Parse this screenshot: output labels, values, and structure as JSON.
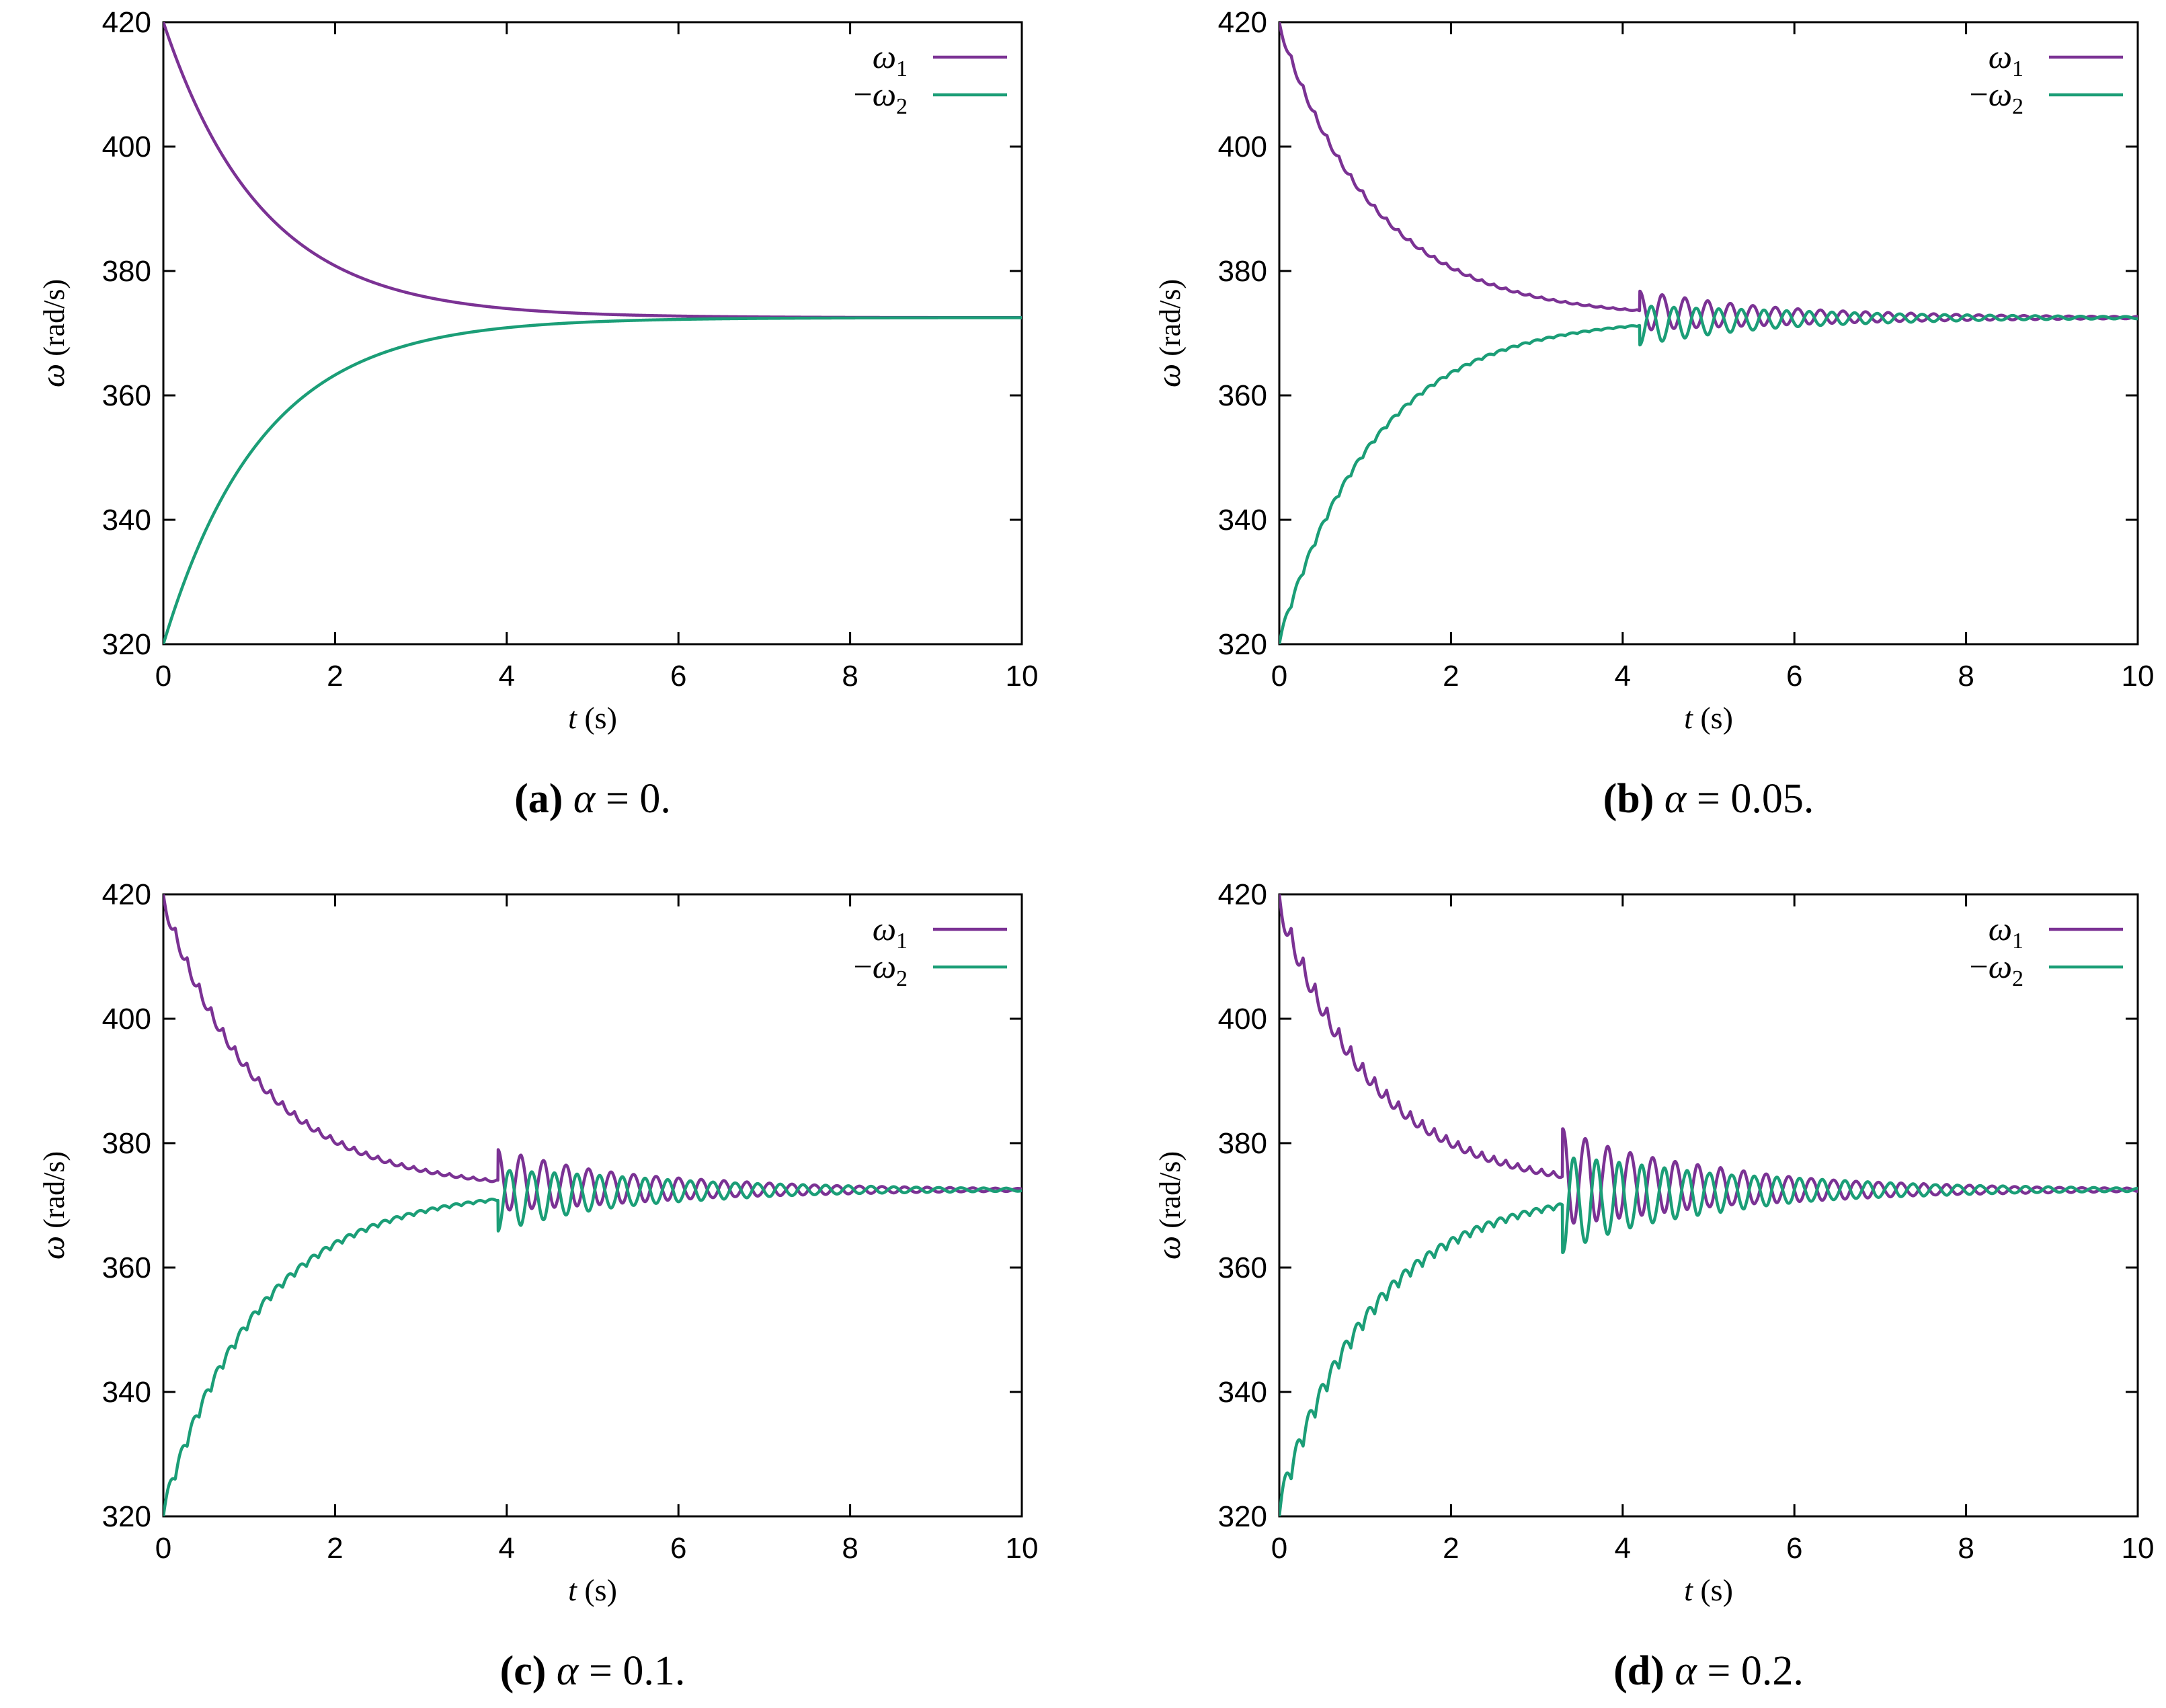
{
  "figure": {
    "y_tick_labels": [
      "320",
      "340",
      "360",
      "380",
      "400",
      "420"
    ],
    "x_tick_labels": [
      "0",
      "2",
      "4",
      "6",
      "8",
      "10"
    ],
    "ylabel_symbol": "ω",
    "ylabel_unit": "(rad/s)",
    "xlabel_symbol": "t",
    "xlabel_unit": "(s)",
    "legend_omega1": {
      "symbol": "ω",
      "subscript": "1"
    },
    "legend_omega2": {
      "prefix": "−",
      "symbol": "ω",
      "subscript": "2"
    },
    "colors": {
      "omega1": "#7b3294",
      "omega2": "#1b9e77",
      "axis": "#000000"
    }
  },
  "chart_data": [
    {
      "panel": "a",
      "type": "line",
      "caption": {
        "letter": "(a)",
        "symbol": "α",
        "eq": " = 0."
      },
      "alpha": 0,
      "xlim": [
        0,
        10
      ],
      "ylim": [
        320,
        420
      ],
      "xlabel": "t (s)",
      "ylabel": "ω (rad/s)",
      "legend": "top-right",
      "series": [
        {
          "name": "ω1",
          "start": 420,
          "final": 372.5,
          "tau": 1.15,
          "ripple": 0,
          "osc_amp": 0,
          "osc_start": 10
        },
        {
          "name": "−ω2",
          "start": 320,
          "final": 372.5,
          "tau": 1.15,
          "ripple": 0,
          "osc_amp": 0,
          "osc_start": 10
        }
      ]
    },
    {
      "panel": "b",
      "type": "line",
      "caption": {
        "letter": "(b)",
        "symbol": "α",
        "eq": " = 0.05."
      },
      "alpha": 0.05,
      "xlim": [
        0,
        10
      ],
      "ylim": [
        320,
        420
      ],
      "xlabel": "t (s)",
      "ylabel": "ω (rad/s)",
      "legend": "top-right",
      "series": [
        {
          "name": "ω1",
          "start": 420,
          "final": 372.5,
          "tau": 1.15,
          "ripple": 1.2,
          "osc_amp": 3.5,
          "osc_start": 4.2
        },
        {
          "name": "−ω2",
          "start": 320,
          "final": 372.5,
          "tau": 1.15,
          "ripple": 1.2,
          "osc_amp": 3.5,
          "osc_start": 4.2
        }
      ]
    },
    {
      "panel": "c",
      "type": "line",
      "caption": {
        "letter": "(c)",
        "symbol": "α",
        "eq": " = 0.1."
      },
      "alpha": 0.1,
      "xlim": [
        0,
        10
      ],
      "ylim": [
        320,
        420
      ],
      "xlabel": "t (s)",
      "ylabel": "ω (rad/s)",
      "legend": "top-right",
      "series": [
        {
          "name": "ω1",
          "start": 420,
          "final": 372.5,
          "tau": 1.15,
          "ripple": 2.2,
          "osc_amp": 5.5,
          "osc_start": 3.9
        },
        {
          "name": "−ω2",
          "start": 320,
          "final": 372.5,
          "tau": 1.15,
          "ripple": 2.2,
          "osc_amp": 5.5,
          "osc_start": 3.9
        }
      ]
    },
    {
      "panel": "d",
      "type": "line",
      "caption": {
        "letter": "(d)",
        "symbol": "α",
        "eq": " = 0.2."
      },
      "alpha": 0.2,
      "xlim": [
        0,
        10
      ],
      "ylim": [
        320,
        420
      ],
      "xlabel": "t (s)",
      "ylabel": "ω (rad/s)",
      "legend": "top-right",
      "series": [
        {
          "name": "ω1",
          "start": 420,
          "final": 372.5,
          "tau": 1.15,
          "ripple": 3.5,
          "osc_amp": 8.5,
          "osc_start": 3.3
        },
        {
          "name": "−ω2",
          "start": 320,
          "final": 372.5,
          "tau": 1.15,
          "ripple": 3.5,
          "osc_amp": 8.5,
          "osc_start": 3.3
        }
      ]
    }
  ]
}
